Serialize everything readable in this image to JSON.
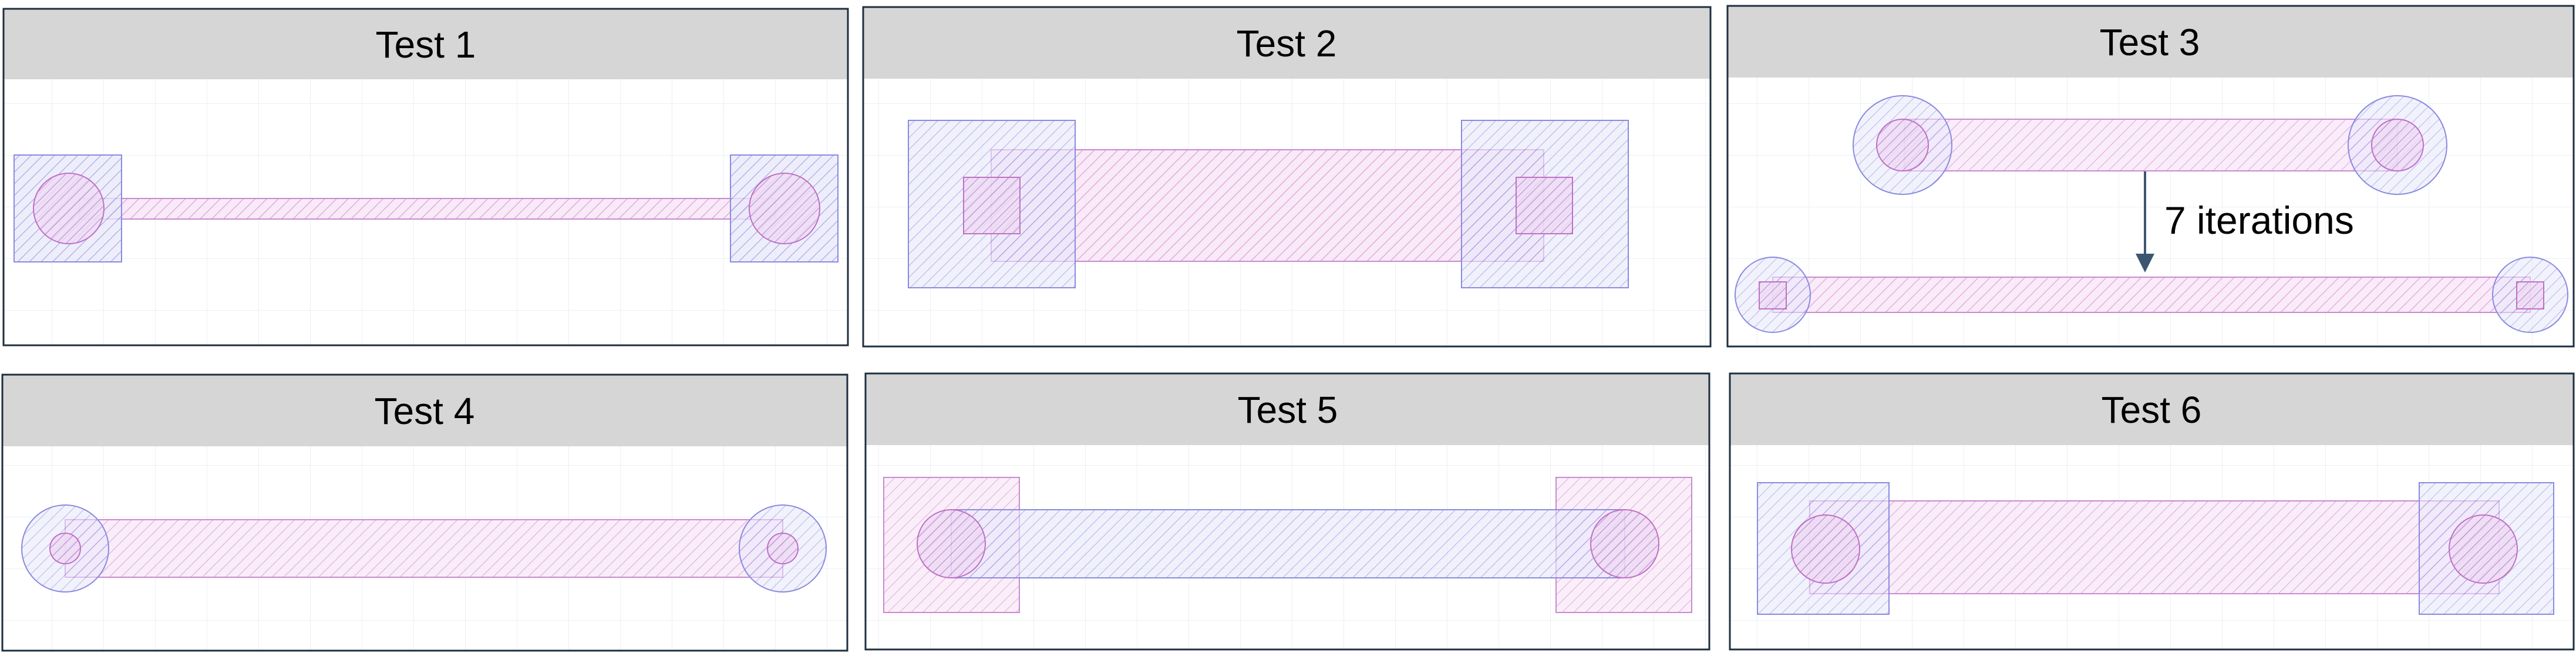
{
  "panels": [
    {
      "title": "Test 1"
    },
    {
      "title": "Test 2"
    },
    {
      "title": "Test 3",
      "annotation": "7 iterations"
    },
    {
      "title": "Test 4"
    },
    {
      "title": "Test 5"
    },
    {
      "title": "Test 6"
    }
  ],
  "colors": {
    "frame": "#1f2f3f",
    "header_bg": "#d6d6d6",
    "grid": "#eceff3",
    "pink_hatch": "#d98ad6",
    "blue_hatch": "#8a8ae0",
    "arrow": "#3d5670"
  }
}
